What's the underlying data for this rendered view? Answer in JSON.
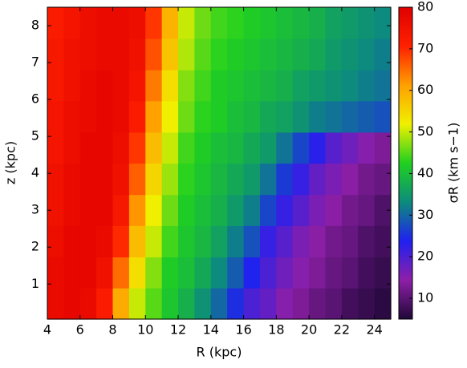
{
  "chart_data": {
    "type": "heatmap",
    "xlabel": "R (kpc)",
    "ylabel": "z (kpc)",
    "colorbar_label": "σR (km s−1)",
    "x": [
      4.5,
      5.5,
      6.5,
      7.5,
      8.5,
      9.5,
      10.5,
      11.5,
      12.5,
      13.5,
      14.5,
      15.5,
      16.5,
      17.5,
      18.5,
      19.5,
      20.5,
      21.5,
      22.5,
      23.5,
      24.5
    ],
    "y": [
      0.47,
      1.32,
      2.16,
      3.01,
      3.85,
      4.7,
      5.54,
      6.39,
      7.23,
      8.08
    ],
    "values": [
      [
        77,
        78,
        77,
        72,
        60,
        50,
        45,
        41,
        38,
        34,
        30,
        25,
        20,
        18,
        15,
        13,
        11,
        10,
        8,
        7,
        6
      ],
      [
        77,
        78,
        78,
        75,
        65,
        54,
        47,
        42,
        40,
        37,
        33,
        29,
        24,
        20,
        17,
        15,
        13,
        11,
        10,
        8,
        7
      ],
      [
        76,
        78,
        78,
        77,
        70,
        58,
        50,
        44,
        41,
        39,
        36,
        32,
        28,
        22,
        19,
        16,
        14,
        12,
        11,
        9,
        8
      ],
      [
        75,
        77,
        78,
        78,
        73,
        62,
        52,
        46,
        42,
        40,
        38,
        35,
        32,
        27,
        22,
        19,
        16,
        14,
        12,
        11,
        9
      ],
      [
        75,
        77,
        78,
        78,
        75,
        66,
        55,
        48,
        43,
        41,
        39,
        37,
        35,
        31,
        26,
        22,
        18,
        16,
        14,
        12,
        11
      ],
      [
        74,
        76,
        78,
        78,
        76,
        69,
        58,
        50,
        44,
        42,
        40,
        39,
        37,
        35,
        31,
        27,
        23,
        19,
        17,
        15,
        13
      ],
      [
        74,
        76,
        77,
        78,
        77,
        72,
        61,
        52,
        46,
        43,
        42,
        40,
        39,
        37,
        36,
        34,
        32,
        31,
        30,
        29,
        28
      ],
      [
        73,
        75,
        77,
        78,
        77,
        74,
        64,
        54,
        47,
        44,
        42,
        41,
        40,
        39,
        38,
        36,
        35,
        34,
        33,
        32,
        31
      ],
      [
        73,
        75,
        76,
        77,
        77,
        75,
        67,
        57,
        49,
        45,
        43,
        42,
        41,
        40,
        39,
        38,
        37,
        35,
        34,
        33,
        32
      ],
      [
        72,
        74,
        76,
        77,
        77,
        76,
        69,
        59,
        50,
        46,
        44,
        43,
        42,
        41,
        40,
        39,
        38,
        36,
        35,
        34,
        33
      ]
    ],
    "xlim": [
      4,
      25
    ],
    "ylim": [
      0.05,
      8.5
    ],
    "clim": [
      5,
      80
    ],
    "xticks": [
      4,
      6,
      8,
      10,
      12,
      14,
      16,
      18,
      20,
      22,
      24
    ],
    "yticks": [
      1,
      2,
      3,
      4,
      5,
      6,
      7,
      8
    ],
    "cticks": [
      10,
      20,
      30,
      40,
      50,
      60,
      70,
      80
    ],
    "colorscale": [
      "#1f0838",
      "#8e1fa8",
      "#2020f0",
      "#0c8c7c",
      "#20d020",
      "#f0f000",
      "#ffa000",
      "#ff2000",
      "#e00000"
    ]
  }
}
